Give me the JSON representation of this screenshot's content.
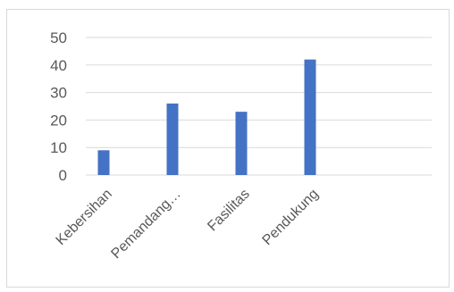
{
  "chart_data": {
    "type": "bar",
    "title": "",
    "xlabel": "",
    "ylabel": "",
    "categories": [
      "Kebersihan",
      "Pemandang…",
      "Fasilitas",
      "Pendukung"
    ],
    "values": [
      9,
      26,
      23,
      42
    ],
    "ylim": [
      0,
      50
    ],
    "yticks": [
      0,
      10,
      20,
      30,
      40,
      50
    ],
    "grid": true,
    "legend": "none",
    "bar_color": "#4472c4",
    "grid_color": "#d9d9d9",
    "text_color": "#595959"
  }
}
